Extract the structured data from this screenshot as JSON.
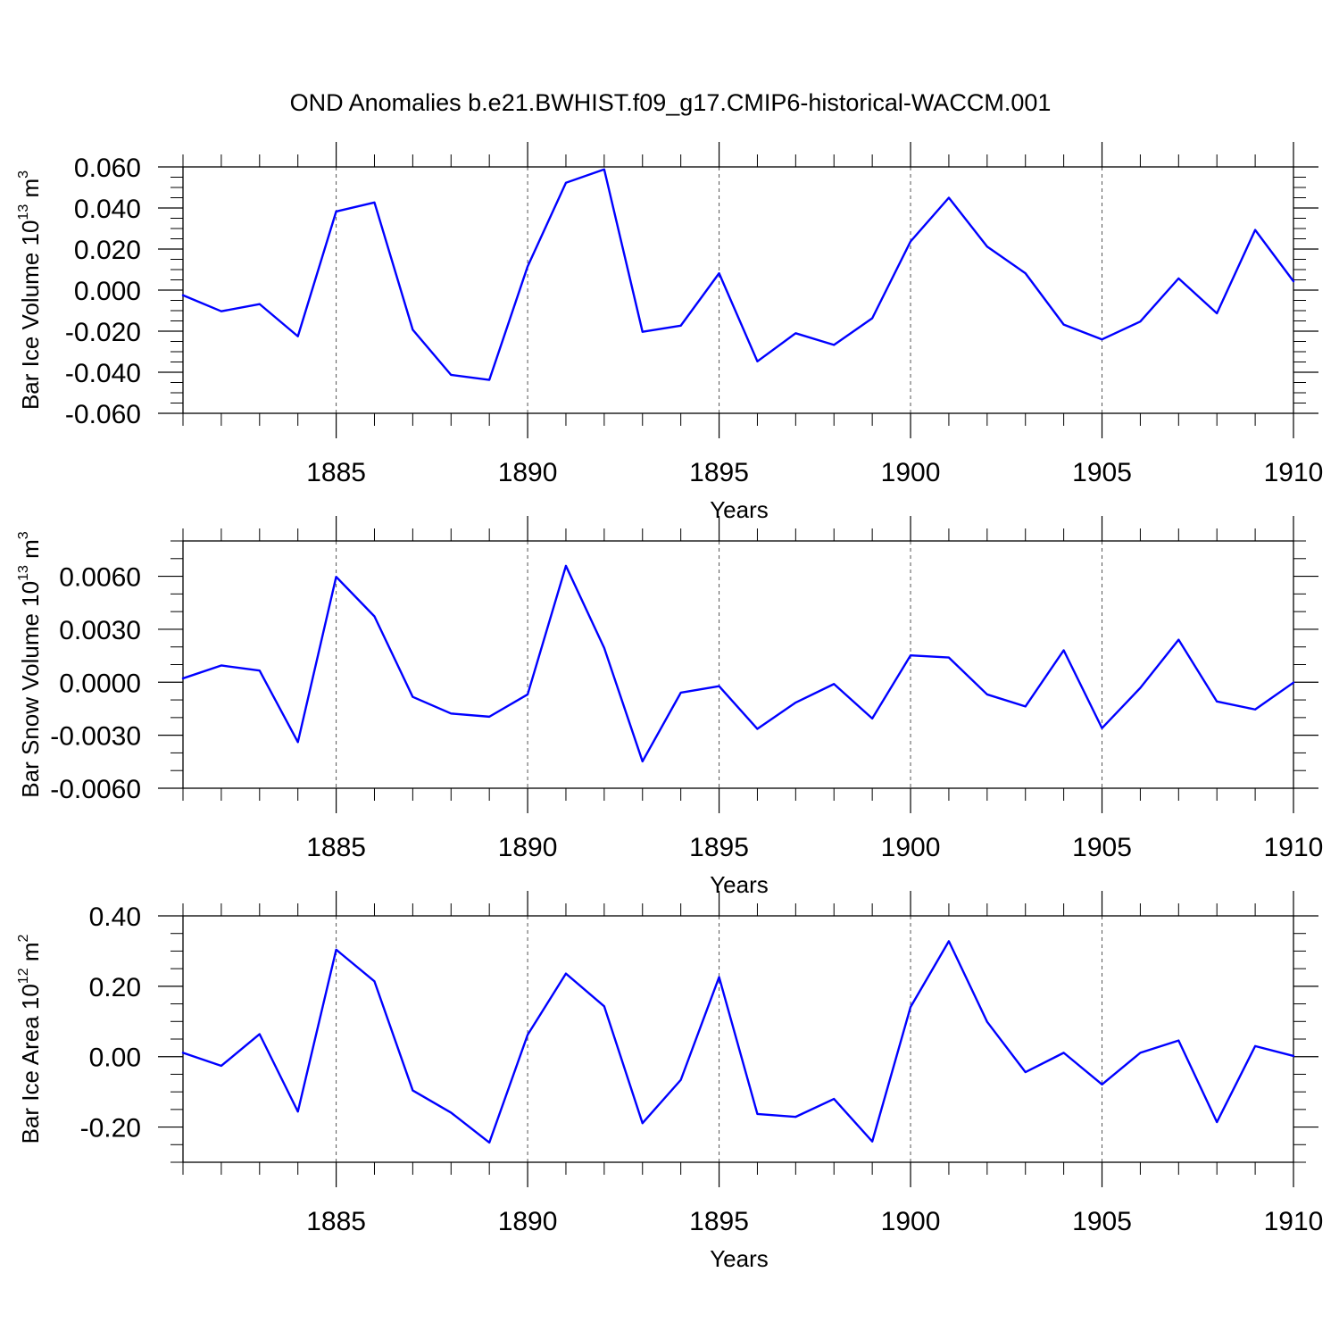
{
  "title": "OND Anomalies b.e21.BWHIST.f09_g17.CMIP6-historical-WACCM.001",
  "line_color": "#0000ff",
  "chart_data": [
    {
      "type": "line",
      "ylabel": {
        "prefix": "Bar Ice Volume 10",
        "exp": "13",
        "unit": " m",
        "unit_exp": "3"
      },
      "xlabel": "Years",
      "xlim": [
        1881,
        1910
      ],
      "ylim": [
        -0.06,
        0.06
      ],
      "yticks": [
        0.06,
        0.04,
        0.02,
        0.0,
        -0.02,
        -0.04,
        -0.06
      ],
      "ytick_labels": [
        "0.060",
        "0.040",
        "0.020",
        "0.000",
        "-0.020",
        "-0.040",
        "-0.060"
      ],
      "y_minor_step": 0.005,
      "xticks": [
        1885,
        1890,
        1895,
        1900,
        1905,
        1910
      ],
      "xtick_labels": [
        "1885",
        "1890",
        "1895",
        "1900",
        "1905",
        "1910"
      ],
      "x": [
        1881,
        1882,
        1883,
        1884,
        1885,
        1886,
        1887,
        1888,
        1889,
        1890,
        1891,
        1892,
        1893,
        1894,
        1895,
        1896,
        1897,
        1898,
        1899,
        1900,
        1901,
        1902,
        1903,
        1904,
        1905,
        1906,
        1907,
        1908,
        1909,
        1910
      ],
      "series": [
        {
          "values": [
            -0.0025,
            -0.0103,
            -0.0068,
            -0.0225,
            0.0383,
            0.0427,
            -0.0193,
            -0.0413,
            -0.0437,
            0.0115,
            0.0523,
            0.0588,
            -0.0203,
            -0.0173,
            0.0082,
            -0.0347,
            -0.021,
            -0.0267,
            -0.0137,
            0.0237,
            0.045,
            0.0212,
            0.0082,
            -0.0168,
            -0.024,
            -0.0153,
            0.0057,
            -0.0113,
            0.0293,
            0.0043
          ]
        }
      ]
    },
    {
      "type": "line",
      "ylabel": {
        "prefix": "Bar Snow Volume 10",
        "exp": "13",
        "unit": " m",
        "unit_exp": "3"
      },
      "xlabel": "Years",
      "xlim": [
        1881,
        1910
      ],
      "ylim": [
        -0.006,
        0.008
      ],
      "yticks": [
        0.006,
        0.003,
        0.0,
        -0.003,
        -0.006
      ],
      "ytick_labels": [
        "0.0060",
        "0.0030",
        "0.0000",
        "-0.0030",
        "-0.0060"
      ],
      "y_minor_step": 0.001,
      "xticks": [
        1885,
        1890,
        1895,
        1900,
        1905,
        1910
      ],
      "xtick_labels": [
        "1885",
        "1890",
        "1895",
        "1900",
        "1905",
        "1910"
      ],
      "x": [
        1881,
        1882,
        1883,
        1884,
        1885,
        1886,
        1887,
        1888,
        1889,
        1890,
        1891,
        1892,
        1893,
        1894,
        1895,
        1896,
        1897,
        1898,
        1899,
        1900,
        1901,
        1902,
        1903,
        1904,
        1905,
        1906,
        1907,
        1908,
        1909,
        1910
      ],
      "series": [
        {
          "values": [
            0.00022,
            0.00095,
            0.00066,
            -0.00339,
            0.00597,
            0.00373,
            -0.00083,
            -0.00177,
            -0.00195,
            -0.00069,
            0.00659,
            0.00194,
            -0.00448,
            -0.00059,
            -0.00022,
            -0.00264,
            -0.00115,
            -0.0001,
            -0.00205,
            0.00152,
            0.0014,
            -0.00069,
            -0.00137,
            0.00181,
            -0.0026,
            -0.00032,
            0.00241,
            -0.00109,
            -0.00154,
            -2e-05
          ]
        }
      ]
    },
    {
      "type": "line",
      "ylabel": {
        "prefix": "Bar Ice Area 10",
        "exp": "12",
        "unit": " m",
        "unit_exp": "2"
      },
      "xlabel": "Years",
      "xlim": [
        1881,
        1910
      ],
      "ylim": [
        -0.3,
        0.4
      ],
      "yticks": [
        0.4,
        0.2,
        0.0,
        -0.2
      ],
      "ytick_labels": [
        "0.40",
        "0.20",
        "0.00",
        "-0.20"
      ],
      "y_minor_step": 0.05,
      "xticks": [
        1885,
        1890,
        1895,
        1900,
        1905,
        1910
      ],
      "xtick_labels": [
        "1885",
        "1890",
        "1895",
        "1900",
        "1905",
        "1910"
      ],
      "x": [
        1881,
        1882,
        1883,
        1884,
        1885,
        1886,
        1887,
        1888,
        1889,
        1890,
        1891,
        1892,
        1893,
        1894,
        1895,
        1896,
        1897,
        1898,
        1899,
        1900,
        1901,
        1902,
        1903,
        1904,
        1905,
        1906,
        1907,
        1908,
        1909,
        1910
      ],
      "series": [
        {
          "values": [
            0.011,
            -0.026,
            0.064,
            -0.156,
            0.304,
            0.214,
            -0.096,
            -0.159,
            -0.244,
            0.062,
            0.236,
            0.143,
            -0.189,
            -0.066,
            0.226,
            -0.163,
            -0.171,
            -0.12,
            -0.241,
            0.141,
            0.328,
            0.099,
            -0.044,
            0.011,
            -0.079,
            0.011,
            0.046,
            -0.186,
            0.03,
            0.002
          ]
        }
      ]
    }
  ]
}
